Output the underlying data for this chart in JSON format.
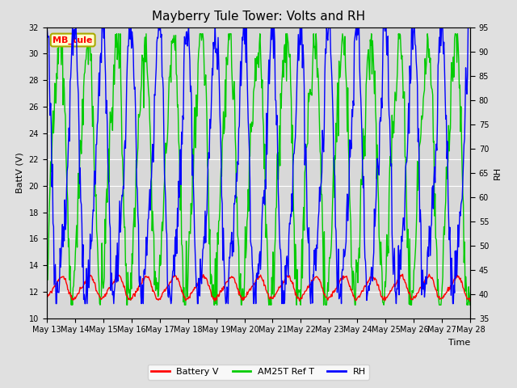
{
  "title": "Mayberry Tule Tower: Volts and RH",
  "xlabel": "Time",
  "ylabel_left": "BattV (V)",
  "ylabel_right": "RH",
  "station_label": "MB_tule",
  "ylim_left": [
    10,
    32
  ],
  "ylim_right": [
    35,
    95
  ],
  "yticks_left": [
    10,
    12,
    14,
    16,
    18,
    20,
    22,
    24,
    26,
    28,
    30,
    32
  ],
  "yticks_right": [
    35,
    40,
    45,
    50,
    55,
    60,
    65,
    70,
    75,
    80,
    85,
    90,
    95
  ],
  "xtick_labels": [
    "May 13",
    "May 14",
    "May 15",
    "May 16",
    "May 17",
    "May 18",
    "May 19",
    "May 20",
    "May 21",
    "May 22",
    "May 23",
    "May 24",
    "May 25",
    "May 26",
    "May 27",
    "May 28"
  ],
  "fig_bg_color": "#e0e0e0",
  "plot_bg_color": "#d8d8d8",
  "grid_color": "#ffffff",
  "battery_color": "#ff0000",
  "am25t_color": "#00cc00",
  "rh_color": "#0000ff",
  "legend_battery": "Battery V",
  "legend_am25t": "AM25T Ref T",
  "legend_rh": "RH",
  "title_fontsize": 11,
  "label_fontsize": 8,
  "tick_fontsize": 7,
  "legend_fontsize": 8
}
